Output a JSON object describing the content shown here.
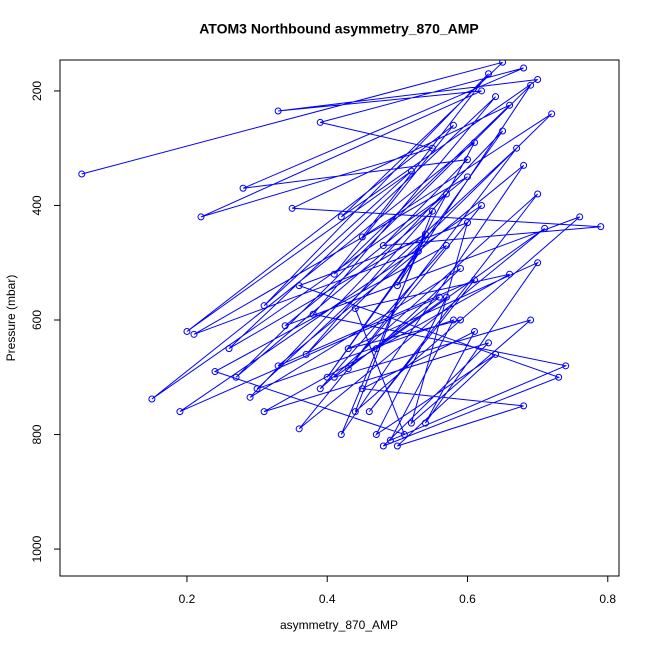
{
  "chart_data": {
    "type": "line",
    "title": "ATOM3 Northbound asymmetry_870_AMP",
    "x_label": "asymmetry_870_AMP",
    "y_label": "Pressure (mbar)",
    "color": "#0000ff",
    "x": [
      0.05,
      0.65,
      0.42,
      0.7,
      0.33,
      0.62,
      0.22,
      0.55,
      0.39,
      0.68,
      0.28,
      0.6,
      0.48,
      0.79,
      0.35,
      0.66,
      0.41,
      0.58,
      0.2,
      0.52,
      0.31,
      0.63,
      0.45,
      0.72,
      0.37,
      0.57,
      0.15,
      0.61,
      0.5,
      0.69,
      0.27,
      0.55,
      0.44,
      0.76,
      0.34,
      0.6,
      0.21,
      0.53,
      0.4,
      0.65,
      0.29,
      0.59,
      0.47,
      0.71,
      0.36,
      0.62,
      0.19,
      0.56,
      0.43,
      0.67,
      0.3,
      0.58,
      0.49,
      0.74,
      0.38,
      0.64,
      0.26,
      0.54,
      0.42,
      0.68,
      0.33,
      0.61,
      0.46,
      0.7,
      0.39,
      0.57,
      0.24,
      0.51,
      0.44,
      0.66,
      0.31,
      0.63,
      0.48,
      0.73,
      0.36,
      0.6,
      0.52,
      0.69,
      0.41,
      0.57,
      0.47,
      0.64,
      0.5,
      0.68,
      0.45,
      0.61,
      0.54,
      0.7,
      0.43,
      0.59
    ],
    "values": [
      345,
      150,
      420,
      180,
      235,
      200,
      420,
      300,
      255,
      160,
      370,
      320,
      470,
      437,
      405,
      225,
      520,
      260,
      620,
      340,
      575,
      170,
      455,
      240,
      660,
      380,
      738,
      290,
      540,
      190,
      700,
      410,
      760,
      420,
      610,
      350,
      625,
      480,
      700,
      270,
      735,
      510,
      650,
      440,
      790,
      400,
      760,
      560,
      685,
      300,
      720,
      600,
      810,
      680,
      590,
      210,
      650,
      450,
      800,
      330,
      680,
      530,
      760,
      380,
      720,
      470,
      690,
      800,
      580,
      520,
      760,
      640,
      820,
      700,
      540,
      430,
      780,
      600,
      700,
      560,
      800,
      660,
      820,
      750,
      720,
      620,
      780,
      500,
      650,
      600
    ],
    "xlim": [
      0.019,
      0.816
    ],
    "ylim": [
      1047,
      146
    ],
    "xticks": [
      0.2,
      0.4,
      0.6,
      0.8
    ],
    "yticks": [
      200,
      400,
      600,
      800,
      1000
    ]
  }
}
